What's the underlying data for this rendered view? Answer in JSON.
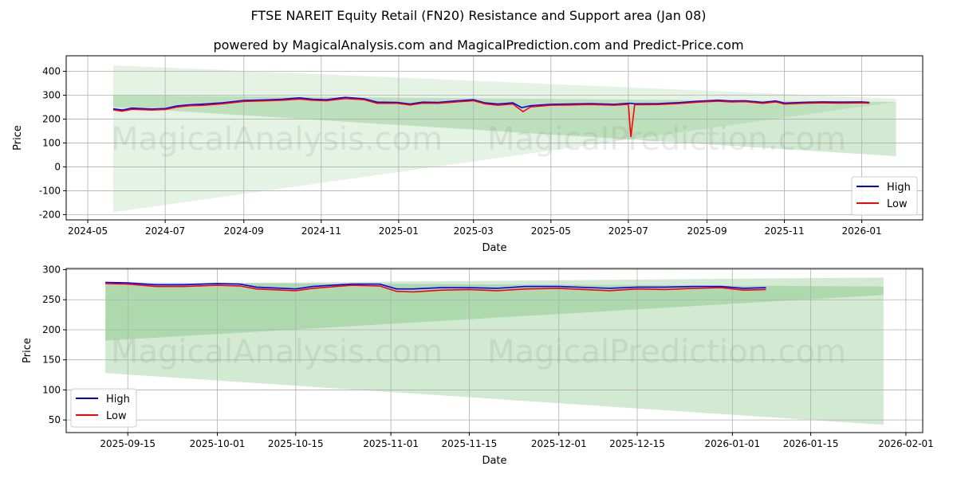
{
  "title": "FTSE NAREIT Equity Retail (FN20) Resistance and Support area (Jan 08)",
  "subtitle": "powered by MagicalAnalysis.com and MagicalPrediction.com and Predict-Price.com",
  "watermarks": [
    "MagicalAnalysis.com",
    "MagicalPrediction.com"
  ],
  "colors": {
    "high": "#0000ff",
    "low": "#ff0000",
    "band": "#2ca02c"
  },
  "chart_data": [
    {
      "type": "line",
      "xlabel": "Date",
      "ylabel": "Price",
      "xlim": [
        "2024-04-14",
        "2026-02-18"
      ],
      "ylim": [
        -222,
        465
      ],
      "xticks": [
        "2024-05",
        "2024-07",
        "2024-09",
        "2024-11",
        "2025-01",
        "2025-03",
        "2025-05",
        "2025-07",
        "2025-09",
        "2025-11",
        "2026-01"
      ],
      "yticks": [
        -200,
        -100,
        0,
        100,
        200,
        300,
        400
      ],
      "legend": {
        "position": "bottom-right",
        "entries": [
          "High",
          "Low"
        ]
      },
      "grid": true,
      "bands": [
        {
          "start": "2024-05-21",
          "end": "2026-01-28",
          "upper": [
            425,
            285
          ],
          "lower": [
            -190,
            272
          ],
          "opacity": 0.12
        },
        {
          "start": "2024-05-21",
          "end": "2026-01-28",
          "upper": [
            300,
            272
          ],
          "lower": [
            250,
            45
          ],
          "opacity": 0.22
        }
      ],
      "series": [
        {
          "name": "High",
          "points": [
            [
              "2024-05-21",
              243
            ],
            [
              "2024-05-28",
              238
            ],
            [
              "2024-06-05",
              246
            ],
            [
              "2024-06-20",
              242
            ],
            [
              "2024-07-01",
              244
            ],
            [
              "2024-07-10",
              255
            ],
            [
              "2024-07-20",
              260
            ],
            [
              "2024-08-01",
              263
            ],
            [
              "2024-08-15",
              268
            ],
            [
              "2024-09-01",
              278
            ],
            [
              "2024-09-15",
              280
            ],
            [
              "2024-10-01",
              283
            ],
            [
              "2024-10-15",
              289
            ],
            [
              "2024-10-25",
              283
            ],
            [
              "2024-11-05",
              281
            ],
            [
              "2024-11-20",
              291
            ],
            [
              "2024-12-05",
              285
            ],
            [
              "2024-12-15",
              271
            ],
            [
              "2024-12-31",
              270
            ],
            [
              "2025-01-10",
              263
            ],
            [
              "2025-01-20",
              271
            ],
            [
              "2025-02-01",
              270
            ],
            [
              "2025-02-15",
              276
            ],
            [
              "2025-03-01",
              281
            ],
            [
              "2025-03-10",
              268
            ],
            [
              "2025-03-20",
              263
            ],
            [
              "2025-04-01",
              268
            ],
            [
              "2025-04-08",
              248
            ],
            [
              "2025-04-15",
              256
            ],
            [
              "2025-05-01",
              262
            ],
            [
              "2025-05-15",
              263
            ],
            [
              "2025-06-01",
              265
            ],
            [
              "2025-06-20",
              262
            ],
            [
              "2025-07-01",
              266
            ],
            [
              "2025-07-03",
              266
            ],
            [
              "2025-07-06",
              264
            ],
            [
              "2025-07-25",
              265
            ],
            [
              "2025-08-10",
              269
            ],
            [
              "2025-08-25",
              275
            ],
            [
              "2025-09-10",
              279
            ],
            [
              "2025-09-20",
              276
            ],
            [
              "2025-10-01",
              277
            ],
            [
              "2025-10-15",
              270
            ],
            [
              "2025-10-25",
              276
            ],
            [
              "2025-11-01",
              267
            ],
            [
              "2025-11-15",
              270
            ],
            [
              "2025-12-01",
              272
            ],
            [
              "2025-12-15",
              271
            ],
            [
              "2026-01-01",
              272
            ],
            [
              "2026-01-07",
              270
            ]
          ]
        },
        {
          "name": "Low",
          "points": [
            [
              "2024-05-21",
              239
            ],
            [
              "2024-05-28",
              233
            ],
            [
              "2024-06-05",
              241
            ],
            [
              "2024-06-20",
              238
            ],
            [
              "2024-07-01",
              240
            ],
            [
              "2024-07-10",
              250
            ],
            [
              "2024-07-20",
              256
            ],
            [
              "2024-08-01",
              258
            ],
            [
              "2024-08-15",
              264
            ],
            [
              "2024-09-01",
              274
            ],
            [
              "2024-09-15",
              276
            ],
            [
              "2024-10-01",
              279
            ],
            [
              "2024-10-15",
              284
            ],
            [
              "2024-10-25",
              279
            ],
            [
              "2024-11-05",
              277
            ],
            [
              "2024-11-20",
              286
            ],
            [
              "2024-12-05",
              281
            ],
            [
              "2024-12-15",
              266
            ],
            [
              "2024-12-31",
              266
            ],
            [
              "2025-01-10",
              259
            ],
            [
              "2025-01-20",
              267
            ],
            [
              "2025-02-01",
              266
            ],
            [
              "2025-02-15",
              272
            ],
            [
              "2025-03-01",
              277
            ],
            [
              "2025-03-10",
              264
            ],
            [
              "2025-03-20",
              258
            ],
            [
              "2025-04-01",
              263
            ],
            [
              "2025-04-09",
              231
            ],
            [
              "2025-04-15",
              251
            ],
            [
              "2025-05-01",
              258
            ],
            [
              "2025-05-15",
              259
            ],
            [
              "2025-06-01",
              261
            ],
            [
              "2025-06-20",
              258
            ],
            [
              "2025-07-01",
              262
            ],
            [
              "2025-07-03",
              125
            ],
            [
              "2025-07-06",
              260
            ],
            [
              "2025-07-25",
              261
            ],
            [
              "2025-08-10",
              265
            ],
            [
              "2025-08-25",
              271
            ],
            [
              "2025-09-10",
              275
            ],
            [
              "2025-09-20",
              272
            ],
            [
              "2025-10-01",
              273
            ],
            [
              "2025-10-15",
              266
            ],
            [
              "2025-10-25",
              272
            ],
            [
              "2025-11-01",
              263
            ],
            [
              "2025-11-15",
              266
            ],
            [
              "2025-12-01",
              268
            ],
            [
              "2025-12-15",
              267
            ],
            [
              "2026-01-01",
              268
            ],
            [
              "2026-01-07",
              267
            ]
          ]
        }
      ]
    },
    {
      "type": "line",
      "xlabel": "Date",
      "ylabel": "Price",
      "xlim": [
        "2025-09-04",
        "2026-02-04"
      ],
      "ylim": [
        29,
        302
      ],
      "xticks": [
        "2025-09-15",
        "2025-10-01",
        "2025-10-15",
        "2025-11-01",
        "2025-11-15",
        "2025-12-01",
        "2025-12-15",
        "2026-01-01",
        "2026-01-15",
        "2026-02-01"
      ],
      "yticks": [
        50,
        100,
        150,
        200,
        250,
        300
      ],
      "legend": {
        "position": "bottom-left",
        "entries": [
          "High",
          "Low"
        ]
      },
      "grid": true,
      "bands": [
        {
          "start": "2025-09-11",
          "end": "2026-01-28",
          "upper": [
            276,
            287
          ],
          "lower": [
            182,
            258
          ],
          "opacity": 0.22
        },
        {
          "start": "2025-09-11",
          "end": "2026-01-28",
          "upper": [
            279,
            272
          ],
          "lower": [
            128,
            42
          ],
          "opacity": 0.22
        }
      ],
      "series": [
        {
          "name": "High",
          "points": [
            [
              "2025-09-11",
              279
            ],
            [
              "2025-09-15",
              278
            ],
            [
              "2025-09-20",
              275
            ],
            [
              "2025-09-25",
              275
            ],
            [
              "2025-10-01",
              277
            ],
            [
              "2025-10-05",
              276
            ],
            [
              "2025-10-08",
              271
            ],
            [
              "2025-10-15",
              268
            ],
            [
              "2025-10-18",
              272
            ],
            [
              "2025-10-25",
              276
            ],
            [
              "2025-10-30",
              276
            ],
            [
              "2025-11-02",
              268
            ],
            [
              "2025-11-05",
              268
            ],
            [
              "2025-11-10",
              270
            ],
            [
              "2025-11-15",
              270
            ],
            [
              "2025-11-20",
              269
            ],
            [
              "2025-11-25",
              272
            ],
            [
              "2025-12-01",
              272
            ],
            [
              "2025-12-10",
              269
            ],
            [
              "2025-12-15",
              271
            ],
            [
              "2025-12-20",
              271
            ],
            [
              "2025-12-25",
              272
            ],
            [
              "2025-12-30",
              272
            ],
            [
              "2026-01-03",
              269
            ],
            [
              "2026-01-07",
              270
            ]
          ]
        },
        {
          "name": "Low",
          "points": [
            [
              "2025-09-11",
              277
            ],
            [
              "2025-09-15",
              276
            ],
            [
              "2025-09-20",
              272
            ],
            [
              "2025-09-25",
              272
            ],
            [
              "2025-10-01",
              274
            ],
            [
              "2025-10-05",
              273
            ],
            [
              "2025-10-08",
              268
            ],
            [
              "2025-10-15",
              265
            ],
            [
              "2025-10-18",
              269
            ],
            [
              "2025-10-25",
              274
            ],
            [
              "2025-10-30",
              273
            ],
            [
              "2025-11-02",
              264
            ],
            [
              "2025-11-05",
              263
            ],
            [
              "2025-11-10",
              266
            ],
            [
              "2025-11-15",
              267
            ],
            [
              "2025-11-20",
              265
            ],
            [
              "2025-11-25",
              268
            ],
            [
              "2025-12-01",
              269
            ],
            [
              "2025-12-10",
              265
            ],
            [
              "2025-12-15",
              268
            ],
            [
              "2025-12-20",
              267
            ],
            [
              "2025-12-25",
              269
            ],
            [
              "2025-12-30",
              270
            ],
            [
              "2026-01-03",
              266
            ],
            [
              "2026-01-07",
              267
            ]
          ]
        }
      ]
    }
  ]
}
